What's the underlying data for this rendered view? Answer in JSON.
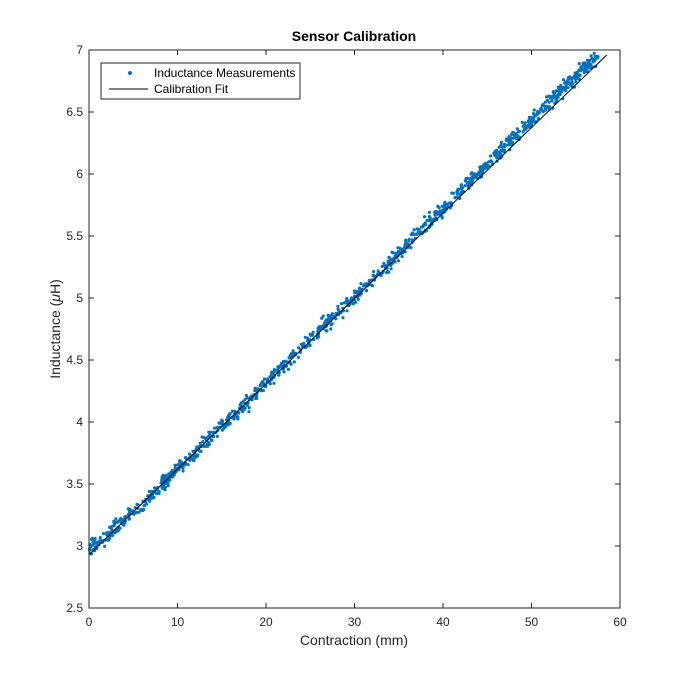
{
  "chart_data": {
    "type": "scatter",
    "title": "Sensor Calibration",
    "xlabel": "Contraction (mm)",
    "ylabel_prefix": "Inductance (",
    "ylabel_symbol": "μ",
    "ylabel_suffix": "H)",
    "xlim": [
      0,
      60
    ],
    "ylim": [
      2.5,
      7
    ],
    "xticks": [
      "0",
      "10",
      "20",
      "30",
      "40",
      "50",
      "60"
    ],
    "yticks": [
      "2.5",
      "3",
      "3.5",
      "4",
      "4.5",
      "5",
      "5.5",
      "6",
      "6.5",
      "7"
    ],
    "grid": false,
    "legend": {
      "position": "top-left",
      "entries": [
        "Inductance Measurements",
        "Calibration Fit"
      ]
    },
    "series": [
      {
        "name": "Inductance Measurements",
        "kind": "scatter",
        "color": "#0072BD",
        "x_range": [
          0,
          57.5
        ],
        "points": [
          [
            0,
            2.97
          ],
          [
            1,
            3.03
          ],
          [
            2,
            3.09
          ],
          [
            3,
            3.15
          ],
          [
            4,
            3.21
          ],
          [
            5,
            3.28
          ],
          [
            6,
            3.34
          ],
          [
            7,
            3.41
          ],
          [
            8,
            3.48
          ],
          [
            9,
            3.55
          ],
          [
            10,
            3.62
          ],
          [
            11,
            3.68
          ],
          [
            12,
            3.75
          ],
          [
            13,
            3.82
          ],
          [
            14,
            3.89
          ],
          [
            15,
            3.96
          ],
          [
            16,
            4.03
          ],
          [
            17,
            4.1
          ],
          [
            18,
            4.17
          ],
          [
            19,
            4.24
          ],
          [
            20,
            4.31
          ],
          [
            21,
            4.38
          ],
          [
            22,
            4.45
          ],
          [
            23,
            4.52
          ],
          [
            24,
            4.59
          ],
          [
            25,
            4.66
          ],
          [
            26,
            4.73
          ],
          [
            27,
            4.8
          ],
          [
            28,
            4.87
          ],
          [
            29,
            4.94
          ],
          [
            30,
            5.01
          ],
          [
            31,
            5.08
          ],
          [
            32,
            5.15
          ],
          [
            33,
            5.22
          ],
          [
            34,
            5.29
          ],
          [
            35,
            5.37
          ],
          [
            36,
            5.44
          ],
          [
            37,
            5.51
          ],
          [
            38,
            5.58
          ],
          [
            39,
            5.65
          ],
          [
            40,
            5.72
          ],
          [
            41,
            5.79
          ],
          [
            42,
            5.87
          ],
          [
            43,
            5.94
          ],
          [
            44,
            6.01
          ],
          [
            45,
            6.08
          ],
          [
            46,
            6.15
          ],
          [
            47,
            6.22
          ],
          [
            48,
            6.3
          ],
          [
            49,
            6.37
          ],
          [
            50,
            6.44
          ],
          [
            51,
            6.51
          ],
          [
            52,
            6.58
          ],
          [
            53,
            6.65
          ],
          [
            54,
            6.72
          ],
          [
            55,
            6.79
          ],
          [
            56,
            6.86
          ],
          [
            57,
            6.92
          ],
          [
            57.5,
            6.95
          ]
        ],
        "noise": 0.03,
        "samples_per_mm": 20
      },
      {
        "name": "Calibration Fit",
        "kind": "line",
        "color": "#000000",
        "x": [
          0,
          58.5
        ],
        "y": [
          2.93,
          6.96
        ]
      }
    ]
  }
}
